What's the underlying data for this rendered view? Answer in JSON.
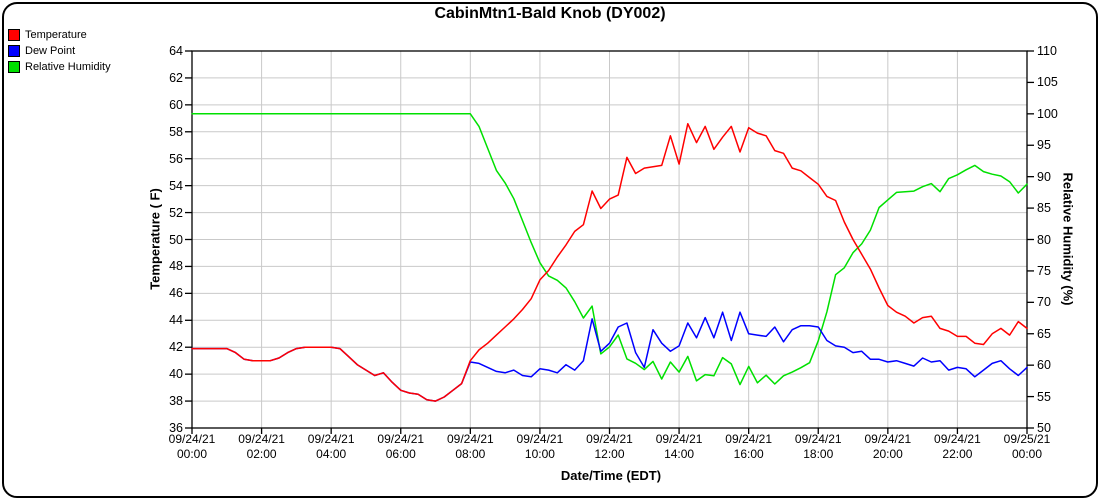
{
  "title": "CabinMtn1-Bald Knob (DY002)",
  "legend": {
    "items": [
      {
        "label": "Temperature",
        "color": "#ff0000"
      },
      {
        "label": "Dew Point",
        "color": "#0000ff"
      },
      {
        "label": "Relative Humidity",
        "color": "#00e000"
      }
    ]
  },
  "axes": {
    "left": {
      "title": "Temperature ( F)",
      "ticks": [
        "64",
        "62",
        "60",
        "58",
        "56",
        "54",
        "52",
        "50",
        "48",
        "46",
        "44",
        "42",
        "40",
        "38",
        "36"
      ]
    },
    "right": {
      "title": "Relative Humidity (%)",
      "ticks": [
        "110",
        "105",
        "100",
        "95",
        "90",
        "85",
        "80",
        "75",
        "70",
        "65",
        "60",
        "55",
        "50"
      ]
    },
    "x": {
      "title": "Date/Time (EDT)",
      "ticks": [
        {
          "date": "09/24/21",
          "time": "00:00"
        },
        {
          "date": "09/24/21",
          "time": "02:00"
        },
        {
          "date": "09/24/21",
          "time": "04:00"
        },
        {
          "date": "09/24/21",
          "time": "06:00"
        },
        {
          "date": "09/24/21",
          "time": "08:00"
        },
        {
          "date": "09/24/21",
          "time": "10:00"
        },
        {
          "date": "09/24/21",
          "time": "12:00"
        },
        {
          "date": "09/24/21",
          "time": "14:00"
        },
        {
          "date": "09/24/21",
          "time": "16:00"
        },
        {
          "date": "09/24/21",
          "time": "18:00"
        },
        {
          "date": "09/24/21",
          "time": "20:00"
        },
        {
          "date": "09/24/21",
          "time": "22:00"
        },
        {
          "date": "09/25/21",
          "time": "00:00"
        }
      ]
    }
  },
  "chart_data": {
    "type": "line",
    "title": "CabinMtn1-Bald Knob (DY002)",
    "xlabel": "Date/Time (EDT)",
    "ylabel_left": "Temperature ( F)",
    "ylabel_right": "Relative Humidity (%)",
    "ylim_left": [
      36,
      64
    ],
    "ylim_right": [
      50,
      110
    ],
    "xlim_hours": [
      0,
      24
    ],
    "grid": true,
    "legend_position": "top-left",
    "x_start_hours": 0,
    "x_step_hours": 0.25,
    "series": [
      {
        "name": "Temperature",
        "axis": "left",
        "color": "#ff0000",
        "values": [
          41.9,
          41.9,
          41.9,
          41.9,
          41.9,
          41.6,
          41.1,
          41.0,
          41.0,
          41.0,
          41.2,
          41.6,
          41.9,
          42.0,
          42.0,
          42.0,
          42.0,
          41.9,
          41.3,
          40.7,
          40.3,
          39.9,
          40.1,
          39.4,
          38.8,
          38.6,
          38.5,
          38.1,
          38.0,
          38.3,
          38.8,
          39.3,
          41.0,
          41.8,
          42.3,
          42.9,
          43.5,
          44.1,
          44.8,
          45.6,
          47.0,
          47.7,
          48.7,
          49.6,
          50.6,
          51.1,
          53.6,
          52.3,
          53.0,
          53.3,
          56.1,
          54.9,
          55.3,
          55.4,
          55.5,
          57.7,
          55.6,
          58.6,
          57.2,
          58.4,
          56.7,
          57.6,
          58.4,
          56.5,
          58.3,
          57.9,
          57.7,
          56.6,
          56.4,
          55.3,
          55.1,
          54.6,
          54.1,
          53.2,
          52.9,
          51.3,
          50.0,
          48.9,
          47.8,
          46.4,
          45.1,
          44.6,
          44.3,
          43.8,
          44.2,
          44.3,
          43.4,
          43.2,
          42.8,
          42.8,
          42.3,
          42.2,
          43.0,
          43.4,
          42.9,
          43.9,
          43.4
        ]
      },
      {
        "name": "Dew Point",
        "axis": "left",
        "color": "#0000ff",
        "values": [
          41.9,
          41.9,
          41.9,
          41.9,
          41.9,
          41.6,
          41.1,
          41.0,
          41.0,
          41.0,
          41.2,
          41.6,
          41.9,
          42.0,
          42.0,
          42.0,
          42.0,
          41.9,
          41.3,
          40.7,
          40.3,
          39.9,
          40.1,
          39.4,
          38.8,
          38.6,
          38.5,
          38.1,
          38.0,
          38.3,
          38.8,
          39.3,
          40.9,
          40.8,
          40.5,
          40.2,
          40.1,
          40.3,
          39.9,
          39.8,
          40.4,
          40.3,
          40.1,
          40.7,
          40.3,
          41.0,
          44.1,
          41.7,
          42.3,
          43.5,
          43.8,
          41.6,
          40.5,
          43.3,
          42.3,
          41.7,
          42.1,
          43.8,
          42.7,
          44.2,
          42.7,
          44.6,
          42.5,
          44.6,
          43.0,
          42.9,
          42.8,
          43.5,
          42.4,
          43.3,
          43.6,
          43.6,
          43.5,
          42.5,
          42.1,
          42.0,
          41.6,
          41.7,
          41.1,
          41.1,
          40.9,
          41.0,
          40.8,
          40.6,
          41.2,
          40.9,
          41.0,
          40.3,
          40.5,
          40.4,
          39.8,
          40.3,
          40.8,
          41.0,
          40.4,
          39.9,
          40.5
        ]
      },
      {
        "name": "Relative Humidity",
        "axis": "right",
        "color": "#00e000",
        "values": [
          100,
          100,
          100,
          100,
          100,
          100,
          100,
          100,
          100,
          100,
          100,
          100,
          100,
          100,
          100,
          100,
          100,
          100,
          100,
          100,
          100,
          100,
          100,
          100,
          100,
          100,
          100,
          100,
          100,
          100,
          100,
          100,
          100,
          98.0,
          94.5,
          91.0,
          89.0,
          86.5,
          83.0,
          79.5,
          76.3,
          74.2,
          73.5,
          72.3,
          70.1,
          67.5,
          69.4,
          61.8,
          62.9,
          64.8,
          61.0,
          60.3,
          59.3,
          60.6,
          57.8,
          60.5,
          58.9,
          61.4,
          57.5,
          58.5,
          58.3,
          61.2,
          60.2,
          56.9,
          59.8,
          57.2,
          58.4,
          57.0,
          58.3,
          58.9,
          59.6,
          60.4,
          63.9,
          68.5,
          74.4,
          75.5,
          77.9,
          79.3,
          81.5,
          85.1,
          86.3,
          87.5,
          87.6,
          87.7,
          88.4,
          88.9,
          87.6,
          89.7,
          90.3,
          91.1,
          91.8,
          90.8,
          90.4,
          90.1,
          89.2,
          87.4,
          88.8
        ]
      }
    ]
  },
  "colors": {
    "grid": "#c9c9c9",
    "frame": "#000000",
    "background": "#ffffff"
  }
}
